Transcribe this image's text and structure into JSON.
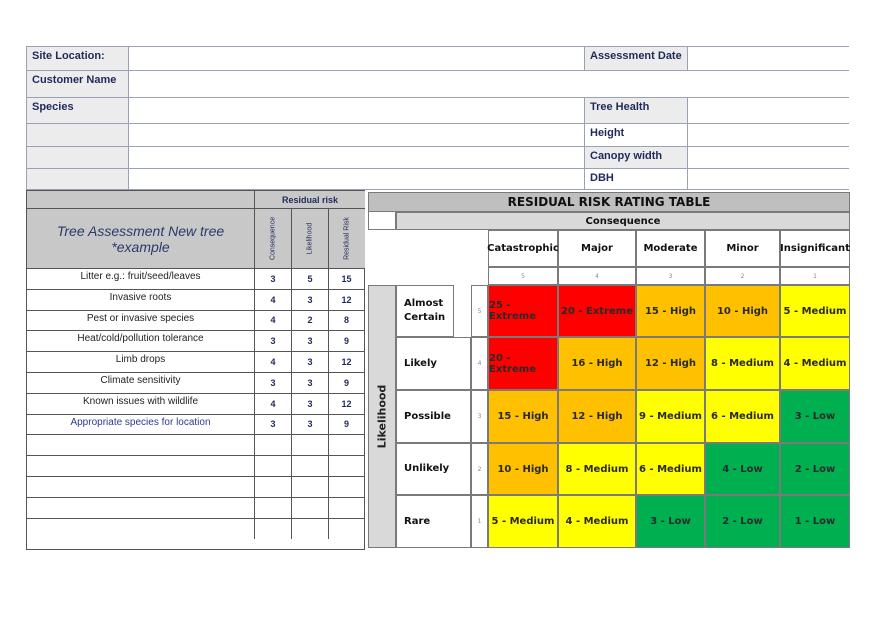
{
  "info": {
    "site_location_label": "Site Location:",
    "assessment_date_label": "Assessment Date",
    "customer_name_label": "Customer Name",
    "species_label": "Species",
    "tree_health_label": "Tree Health",
    "height_label": "Height",
    "canopy_width_label": "Canopy width",
    "dbh_label": "DBH"
  },
  "assessment": {
    "title": "Tree Assessment New tree *example",
    "residual_risk_header": "Residual risk",
    "col_consequence": "Consequence",
    "col_likelihood": "Likelihood",
    "col_residual": "Residual Risk",
    "rows": [
      {
        "label": "Litter e.g.: fruit/seed/leaves",
        "c": "3",
        "l": "5",
        "r": "15"
      },
      {
        "label": "Invasive roots",
        "c": "4",
        "l": "3",
        "r": "12"
      },
      {
        "label": "Pest or invasive species",
        "c": "4",
        "l": "2",
        "r": "8"
      },
      {
        "label": "Heat/cold/pollution tolerance",
        "c": "3",
        "l": "3",
        "r": "9"
      },
      {
        "label": "Limb drops",
        "c": "4",
        "l": "3",
        "r": "12"
      },
      {
        "label": "Climate sensitivity",
        "c": "3",
        "l": "3",
        "r": "9"
      },
      {
        "label": "Known issues with wildlife",
        "c": "4",
        "l": "3",
        "r": "12"
      },
      {
        "label": "Appropriate species for location",
        "c": "3",
        "l": "3",
        "r": "9"
      }
    ]
  },
  "matrix": {
    "title": "RESIDUAL RISK RATING TABLE",
    "consequence_label": "Consequence",
    "likelihood_label": "Likelihood",
    "consequences": [
      {
        "name": "Catastrophic",
        "score": "5"
      },
      {
        "name": "Major",
        "score": "4"
      },
      {
        "name": "Moderate",
        "score": "3"
      },
      {
        "name": "Minor",
        "score": "2"
      },
      {
        "name": "Insignificant",
        "score": "1"
      }
    ],
    "likelihoods": [
      {
        "name": "Almost Certain",
        "score": "5",
        "cells": [
          "25 - Extreme",
          "20 - Extreme",
          "15 - High",
          "10 - High",
          "5 - Medium"
        ]
      },
      {
        "name": "Likely",
        "score": "4",
        "cells": [
          "20 - Extreme",
          "16 - High",
          "12 - High",
          "8 - Medium",
          "4 - Medium"
        ]
      },
      {
        "name": "Possible",
        "score": "3",
        "cells": [
          "15 - High",
          "12 - High",
          "9 - Medium",
          "6 - Medium",
          "3 - Low"
        ]
      },
      {
        "name": "Unlikely",
        "score": "2",
        "cells": [
          "10 - High",
          "8 - Medium",
          "6 - Medium",
          "4 - Low",
          "2 - Low"
        ]
      },
      {
        "name": "Rare",
        "score": "1",
        "cells": [
          "5 - Medium",
          "4 - Medium",
          "3 - Low",
          "2 - Low",
          "1 - Low"
        ]
      }
    ],
    "colors": {
      "Extreme": "#ff0000",
      "High": "#ffc000",
      "Medium": "#ffff00",
      "Low": "#00b050"
    }
  }
}
